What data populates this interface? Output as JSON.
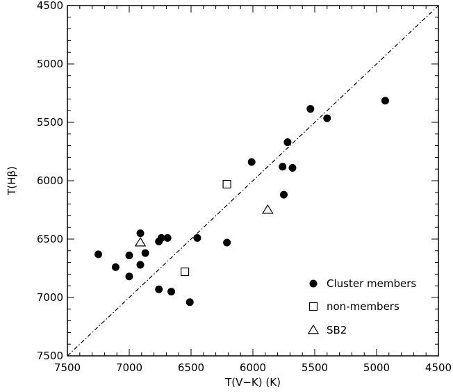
{
  "chart_data": {
    "type": "scatter",
    "xlabel": "T(V−K) (K)",
    "ylabel": "T(Hβ)",
    "xlim": [
      7500,
      4500
    ],
    "ylim": [
      7500,
      4500
    ],
    "x_ticks": [
      "7500",
      "7000",
      "6500",
      "6000",
      "5500",
      "5000",
      "4500"
    ],
    "y_ticks": [
      "4500",
      "5000",
      "5500",
      "6000",
      "6500",
      "7000",
      "7500"
    ],
    "reference_line": "one-to-one (dash-dot)",
    "grid": false,
    "legend_position": "bottom-right",
    "series": [
      {
        "name": "Cluster members",
        "marker": "filled-circle",
        "points": [
          [
            4930,
            5315
          ],
          [
            5400,
            5465
          ],
          [
            5535,
            5385
          ],
          [
            5720,
            5670
          ],
          [
            5760,
            5880
          ],
          [
            5680,
            5890
          ],
          [
            5750,
            6120
          ],
          [
            6010,
            5840
          ],
          [
            6210,
            6530
          ],
          [
            6450,
            6490
          ],
          [
            6510,
            7040
          ],
          [
            6690,
            6490
          ],
          [
            6740,
            6490
          ],
          [
            6760,
            6520
          ],
          [
            6910,
            6450
          ],
          [
            6870,
            6620
          ],
          [
            6910,
            6720
          ],
          [
            7000,
            6640
          ],
          [
            7000,
            6820
          ],
          [
            7110,
            6740
          ],
          [
            7250,
            6630
          ],
          [
            6760,
            6930
          ],
          [
            6660,
            6950
          ]
        ]
      },
      {
        "name": "non-members",
        "marker": "open-square",
        "points": [
          [
            6210,
            6030
          ],
          [
            6550,
            6780
          ]
        ]
      },
      {
        "name": "SB2",
        "marker": "open-triangle",
        "points": [
          [
            5880,
            6250
          ],
          [
            6910,
            6530
          ]
        ]
      }
    ]
  }
}
